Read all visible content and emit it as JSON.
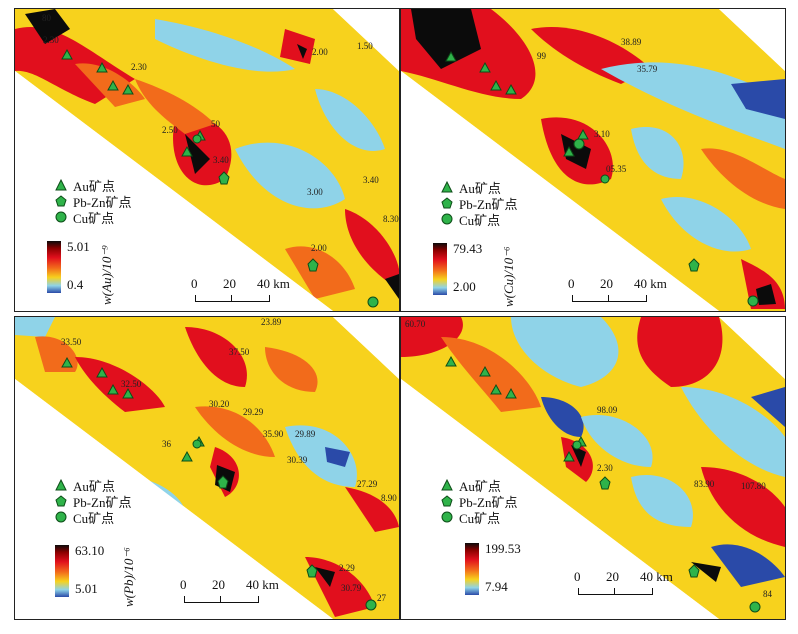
{
  "legend_items": {
    "au": "Au矿点",
    "pbzn": "Pb-Zn矿点",
    "cu": "Cu矿点"
  },
  "scale_bar": {
    "t0": "0",
    "t1": "20",
    "t2": "40 km"
  },
  "panels": [
    {
      "element": "Au",
      "colorbar": {
        "max": "5.01",
        "min": "0.4",
        "unit": "w(Au)/10⁻⁹"
      },
      "values": [
        "80",
        "2.30",
        "2.30",
        "2.00",
        "1.50",
        "2.50",
        "50",
        "3.40",
        "3.00",
        "3.40",
        "8.30",
        "2.00"
      ]
    },
    {
      "element": "Cu",
      "colorbar": {
        "max": "79.43",
        "min": "2.00",
        "unit": "w(Cu)/10⁻⁶"
      },
      "values": [
        "99",
        "38.89",
        "35.79",
        "3.10",
        "05.35"
      ]
    },
    {
      "element": "Pb",
      "colorbar": {
        "max": "63.10",
        "min": "5.01",
        "unit": "w(Pb)/10⁻⁶"
      },
      "values": [
        "23.89",
        "33.50",
        "37.50",
        "32.50",
        "30.20",
        "29.29",
        "35.90",
        "29.89",
        "36",
        "30.39",
        "27.29",
        "8.90",
        "2.29",
        "30.79",
        "27"
      ]
    },
    {
      "element": "Zn",
      "colorbar": {
        "max": "199.53",
        "min": "7.94",
        "unit": "w(Zn)/10⁻⁶"
      },
      "values": [
        "60.70",
        "98.09",
        "2.30",
        "83.90",
        "107.80",
        "84"
      ]
    }
  ],
  "colors": {
    "max": "#0b0b0b",
    "high": "#e10f1d",
    "mid": "#f26b1b",
    "base": "#f7d21d",
    "low": "#8fd3e8",
    "min": "#2a4aa8",
    "marker": "#2fb34a"
  }
}
